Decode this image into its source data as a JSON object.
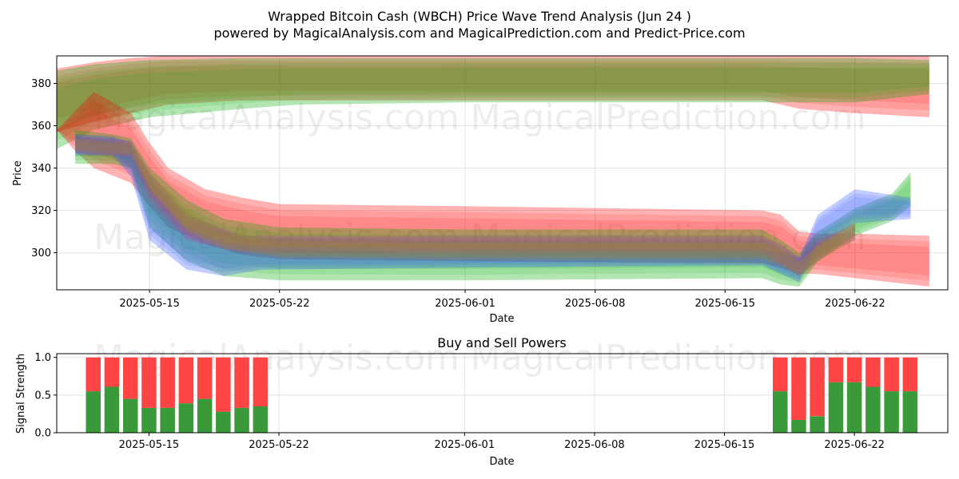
{
  "title_line1": "Wrapped Bitcoin Cash (WBCH) Price Wave Trend Analysis (Jun 24 )",
  "title_line2": "powered by MagicalAnalysis.com and MagicalPrediction.com and Predict-Price.com",
  "watermarks": [
    "MagicalAnalysis.com",
    "MagicalPrediction.com"
  ],
  "colors": {
    "red": "#ff0000",
    "green": "#00aa00",
    "blue": "#3355ff",
    "purple": "#aa44aa",
    "olive": "#998833",
    "buy": "#3a9a3a",
    "sell": "#ff4444"
  },
  "chart_data": [
    {
      "type": "area",
      "xlabel": "Date",
      "ylabel": "Price",
      "xlim": [
        "2025-05-10",
        "2025-06-27"
      ],
      "ylim": [
        282.5,
        393
      ],
      "x_ticks": [
        "2025-05-15",
        "2025-05-22",
        "2025-06-01",
        "2025-06-08",
        "2025-06-15",
        "2025-06-22"
      ],
      "y_ticks": [
        300,
        320,
        340,
        360,
        380
      ],
      "grid": true,
      "bands": [
        {
          "color": "red",
          "dates": [
            "2025-05-10",
            "2025-05-12",
            "2025-05-14",
            "2025-05-16",
            "2025-05-20",
            "2025-05-23",
            "2025-06-01",
            "2025-06-17",
            "2025-06-19",
            "2025-06-22",
            "2025-06-26"
          ],
          "upper": [
            387,
            390,
            392,
            393,
            393,
            393,
            393,
            393,
            393,
            393,
            393
          ],
          "lower": [
            357,
            362,
            366,
            370,
            372,
            372,
            372,
            372,
            368,
            366,
            364
          ]
        },
        {
          "color": "green",
          "dates": [
            "2025-05-10",
            "2025-05-12",
            "2025-05-15",
            "2025-05-20",
            "2025-05-23",
            "2025-06-01",
            "2025-06-18",
            "2025-06-22",
            "2025-06-26"
          ],
          "upper": [
            386,
            389,
            391,
            392,
            392,
            392,
            392,
            392,
            391
          ],
          "lower": [
            349,
            358,
            364,
            368,
            370,
            371,
            371,
            371,
            375
          ]
        },
        {
          "color": "red",
          "dates": [
            "2025-05-10",
            "2025-05-11",
            "2025-05-12",
            "2025-05-14",
            "2025-05-15",
            "2025-05-16",
            "2025-05-18",
            "2025-05-20",
            "2025-05-22",
            "2025-06-01",
            "2025-06-17",
            "2025-06-18",
            "2025-06-19",
            "2025-06-20",
            "2025-06-22",
            "2025-06-26"
          ],
          "upper": [
            358,
            367,
            376,
            366,
            352,
            340,
            330,
            326,
            323,
            322,
            320,
            318,
            310,
            309,
            309,
            308
          ],
          "lower": [
            358,
            348,
            340,
            333,
            322,
            312,
            304,
            299,
            297,
            296,
            295,
            293,
            290,
            290,
            288,
            284
          ]
        },
        {
          "color": "green",
          "dates": [
            "2025-05-11",
            "2025-05-13",
            "2025-05-14",
            "2025-05-15",
            "2025-05-17",
            "2025-05-19",
            "2025-05-22",
            "2025-06-01",
            "2025-06-17",
            "2025-06-18",
            "2025-06-19",
            "2025-06-20",
            "2025-06-22",
            "2025-06-24",
            "2025-06-25"
          ],
          "upper": [
            358,
            356,
            354,
            340,
            325,
            316,
            312,
            311,
            311,
            306,
            300,
            310,
            321,
            328,
            338
          ],
          "lower": [
            342,
            342,
            340,
            312,
            296,
            289,
            287,
            287,
            288,
            285,
            284,
            296,
            308,
            315,
            322
          ]
        },
        {
          "color": "blue",
          "dates": [
            "2025-05-11",
            "2025-05-13",
            "2025-05-14",
            "2025-05-15",
            "2025-05-17",
            "2025-05-19",
            "2025-05-21",
            "2025-06-01",
            "2025-06-17",
            "2025-06-18",
            "2025-06-19",
            "2025-06-20",
            "2025-06-22",
            "2025-06-25"
          ],
          "upper": [
            356,
            355,
            352,
            330,
            312,
            305,
            303,
            302,
            302,
            300,
            298,
            318,
            330,
            326
          ],
          "lower": [
            346,
            346,
            336,
            306,
            292,
            289,
            292,
            293,
            294,
            290,
            286,
            303,
            314,
            316
          ]
        },
        {
          "color": "purple",
          "dates": [
            "2025-05-11",
            "2025-05-14",
            "2025-05-15",
            "2025-05-17",
            "2025-05-20",
            "2025-06-01",
            "2025-06-17",
            "2025-06-18",
            "2025-06-19",
            "2025-06-20",
            "2025-06-21",
            "2025-06-22"
          ],
          "upper": [
            355,
            353,
            338,
            318,
            308,
            308,
            308,
            304,
            298,
            306,
            310,
            314
          ],
          "lower": [
            347,
            345,
            326,
            306,
            300,
            300,
            300,
            294,
            289,
            296,
            302,
            306
          ]
        },
        {
          "color": "olive",
          "dates": [
            "2025-05-11",
            "2025-05-14",
            "2025-05-15",
            "2025-05-17",
            "2025-05-19",
            "2025-05-22",
            "2025-06-01",
            "2025-06-17",
            "2025-06-18",
            "2025-06-19",
            "2025-06-20",
            "2025-06-22"
          ],
          "upper": [
            354,
            352,
            338,
            320,
            310,
            306,
            305,
            305,
            302,
            296,
            304,
            314
          ],
          "lower": [
            348,
            346,
            330,
            310,
            302,
            298,
            297,
            297,
            294,
            289,
            296,
            306
          ]
        }
      ]
    },
    {
      "type": "bar",
      "title": "Buy and Sell Powers",
      "xlabel": "Date",
      "ylabel": "Signal Strength",
      "ylim": [
        0,
        1.05
      ],
      "y_ticks": [
        "0.0",
        "0.5",
        "1.0"
      ],
      "x_ticks": [
        "2025-05-15",
        "2025-05-22",
        "2025-06-01",
        "2025-06-08",
        "2025-06-15",
        "2025-06-22"
      ],
      "grid": true,
      "categories": [
        "2025-05-12",
        "2025-05-13",
        "2025-05-14",
        "2025-05-15",
        "2025-05-16",
        "2025-05-17",
        "2025-05-18",
        "2025-05-19",
        "2025-05-20",
        "2025-05-21",
        "2025-06-18",
        "2025-06-19",
        "2025-06-20",
        "2025-06-21",
        "2025-06-22",
        "2025-06-23",
        "2025-06-24",
        "2025-06-25"
      ],
      "series": [
        {
          "color": "buy",
          "values": [
            0.55,
            0.61,
            0.45,
            0.33,
            0.33,
            0.39,
            0.45,
            0.28,
            0.33,
            0.35,
            0.55,
            0.17,
            0.22,
            0.67,
            0.67,
            0.61,
            0.55,
            0.55
          ]
        },
        {
          "color": "sell",
          "values": [
            0.45,
            0.39,
            0.55,
            0.67,
            0.67,
            0.61,
            0.55,
            0.72,
            0.67,
            0.65,
            0.45,
            0.83,
            0.78,
            0.33,
            0.33,
            0.39,
            0.45,
            0.45
          ]
        }
      ]
    }
  ]
}
